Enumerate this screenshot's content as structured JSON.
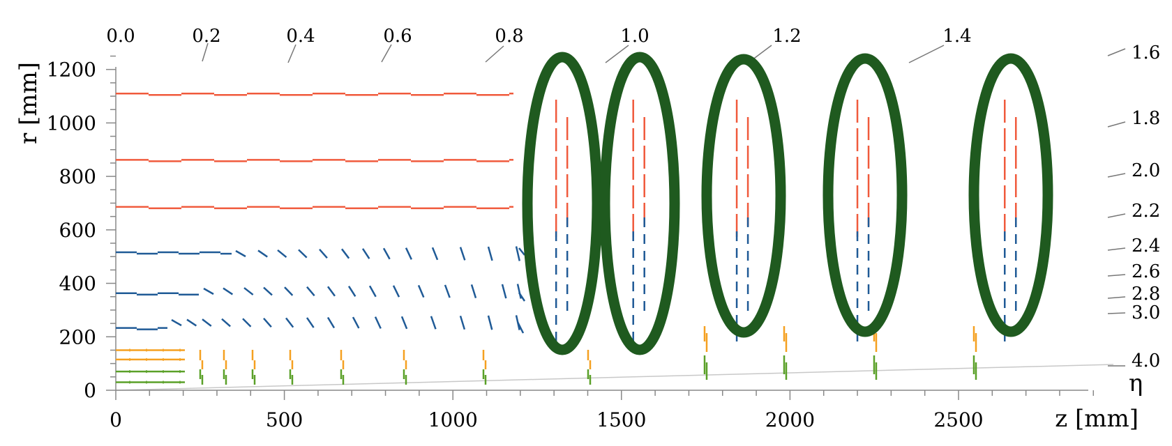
{
  "axes": {
    "y_title": "r [mm]",
    "x_title": "z [mm]",
    "eta_title": "η",
    "y_ticks": [
      "0",
      "200",
      "400",
      "600",
      "800",
      "1000",
      "1200"
    ],
    "x_ticks": [
      "0",
      "500",
      "1000",
      "1500",
      "2000",
      "2500"
    ],
    "eta_top_ticks": [
      "0.0",
      "0.2",
      "0.4",
      "0.6",
      "0.8",
      "1.0",
      "1.2",
      "1.4"
    ],
    "eta_right_ticks": [
      "1.6",
      "1.8",
      "2.0",
      "2.2",
      "2.4",
      "2.6",
      "2.8",
      "3.0",
      "4.0"
    ]
  },
  "colors": {
    "outer_barrel": "#f05a3c",
    "middle_barrel": "#1f5a96",
    "inner_orange": "#f5a020",
    "inner_green": "#5aa028",
    "highlight": "#1f5a1f",
    "eta_lines": "#999999",
    "axis": "#888888"
  },
  "diagram": {
    "outer_barrel_r": [
      1110,
      862,
      686
    ],
    "middle_barrel_r": [
      516,
      363,
      233
    ],
    "inner_barrel_r": [
      150,
      115,
      70,
      30
    ],
    "disk_z": [
      1300,
      1535,
      1840,
      2200,
      2635
    ],
    "highlighted_disks": 5
  }
}
